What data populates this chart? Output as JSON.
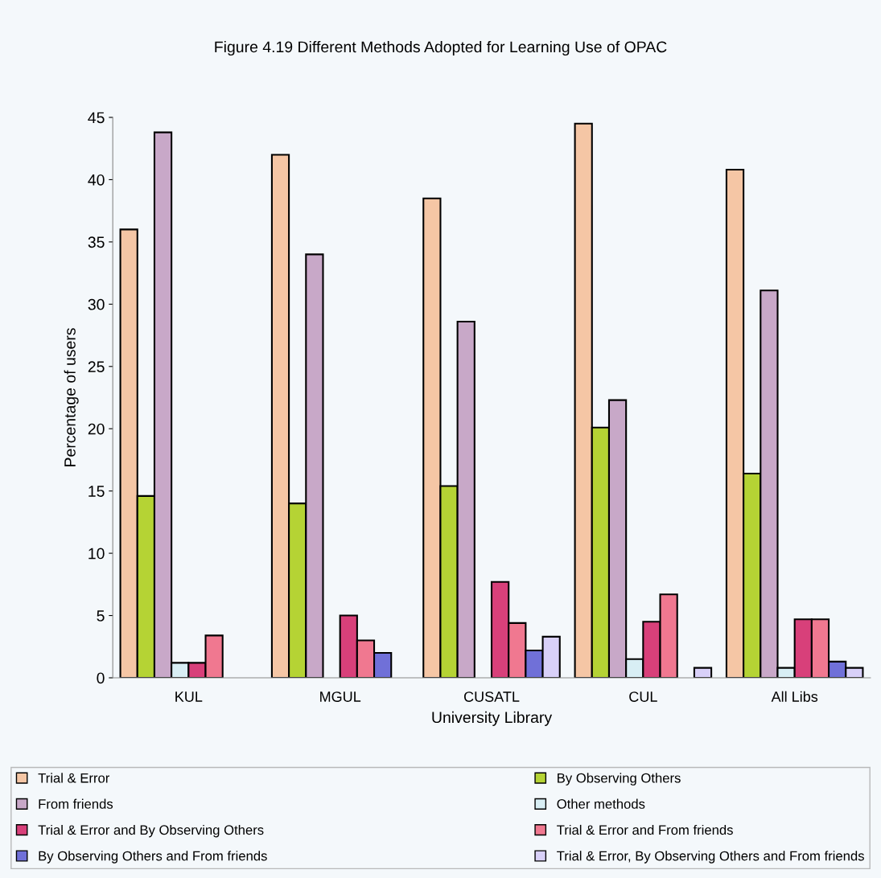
{
  "chart_data": {
    "type": "bar",
    "title": "Figure 4.19 Different Methods Adopted for Learning Use of OPAC",
    "xlabel": "University Library",
    "ylabel": "Percentage of users",
    "categories": [
      "KUL",
      "MGUL",
      "CUSATL",
      "CUL",
      "All Libs"
    ],
    "series": [
      {
        "name": "Trial & Error",
        "color": "#f5c6a5",
        "values": [
          36,
          42,
          38.5,
          44.5,
          40.8
        ]
      },
      {
        "name": "By Observing Others",
        "color": "#b5d334",
        "values": [
          14.6,
          14,
          15.4,
          20.1,
          16.4
        ]
      },
      {
        "name": "From friends",
        "color": "#c8a8c8",
        "values": [
          43.8,
          34,
          28.6,
          22.3,
          31.1
        ]
      },
      {
        "name": "Other methods",
        "color": "#d8eef4",
        "values": [
          1.2,
          0,
          0,
          1.5,
          0.8
        ]
      },
      {
        "name": "Trial & Error and By Observing Others",
        "color": "#d8407a",
        "values": [
          1.2,
          5.0,
          7.7,
          4.5,
          4.7
        ]
      },
      {
        "name": "Trial & Error and From friends",
        "color": "#f07890",
        "values": [
          3.4,
          3.0,
          4.4,
          6.7,
          4.7
        ]
      },
      {
        "name": "By Observing Others and From friends",
        "color": "#7070d8",
        "values": [
          0,
          2.0,
          2.2,
          0,
          1.3
        ]
      },
      {
        "name": "Trial & Error, By Observing Others and From friends",
        "color": "#d8d0f8",
        "values": [
          0,
          0,
          3.3,
          0.8,
          0.8
        ]
      }
    ],
    "ylim": [
      0,
      45
    ],
    "yticks": [
      0,
      5,
      10,
      15,
      20,
      25,
      30,
      35,
      40,
      45
    ],
    "grid": false,
    "legend": "bottom"
  }
}
